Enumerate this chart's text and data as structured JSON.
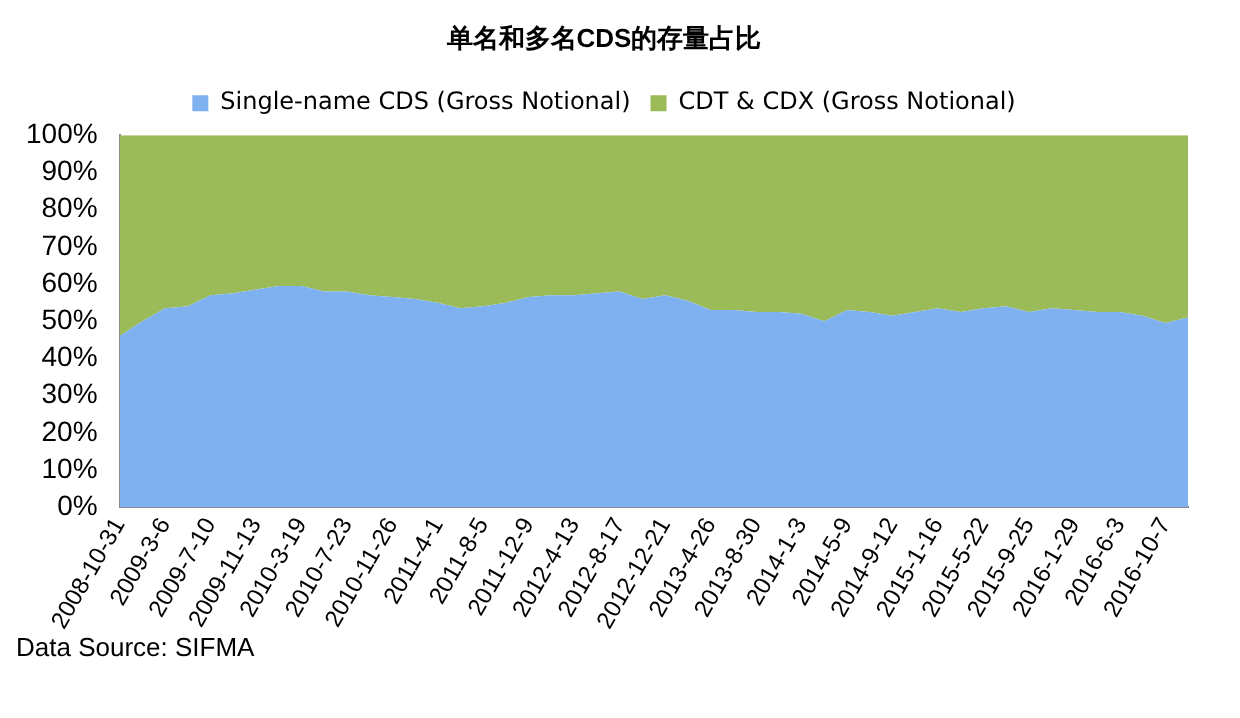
{
  "chart_data": {
    "type": "area",
    "title": "单名和多名CDS的存量占比",
    "stacked": true,
    "legend": "top",
    "grid": false,
    "marker": "none",
    "categories": [
      "2008-10-31",
      null,
      "2009-3-6",
      null,
      "2009-7-10",
      null,
      "2009-11-13",
      null,
      "2010-3-19",
      null,
      "2010-7-23",
      null,
      "2010-11-26",
      null,
      "2011-4-1",
      null,
      "2011-8-5",
      null,
      "2011-12-9",
      null,
      "2012-4-13",
      null,
      "2012-8-17",
      null,
      "2012-12-21",
      null,
      "2013-4-26",
      null,
      "2013-8-30",
      null,
      "2014-1-3",
      null,
      "2014-5-9",
      null,
      "2014-9-12",
      null,
      "2015-1-16",
      null,
      "2015-5-22",
      null,
      "2015-9-25",
      null,
      "2016-1-29",
      null,
      "2016-6-3",
      null,
      "2016-10-7",
      null
    ],
    "series": [
      {
        "name": "Single-name CDS (Gross Notional)",
        "color": "#7fb0f0",
        "values": [
          46,
          50,
          53.5,
          54,
          57,
          57.5,
          58.5,
          59.5,
          59.5,
          58,
          58,
          57,
          56.5,
          56,
          55,
          53.5,
          54,
          55,
          56.5,
          57,
          57,
          57.5,
          58,
          56,
          57,
          55.5,
          53,
          53,
          52.5,
          52.5,
          52,
          50,
          53,
          52.5,
          51.5,
          52.5,
          53.5,
          52.5,
          53.5,
          54,
          52.5,
          53.5,
          53,
          52.5,
          52.5,
          51.5,
          49.5,
          51
        ]
      },
      {
        "name": "CDT & CDX (Gross Notional)",
        "color": "#9bbb59",
        "values": [
          54,
          50,
          46.5,
          46,
          43,
          42.5,
          41.5,
          40.5,
          40.5,
          42,
          42,
          43,
          43.5,
          44,
          45,
          46.5,
          46,
          45,
          43.5,
          43,
          43,
          42.5,
          42,
          44,
          43,
          44.5,
          47,
          47,
          47.5,
          47.5,
          48,
          50,
          47,
          47.5,
          48.5,
          47.5,
          46.5,
          47.5,
          46.5,
          46,
          47.5,
          46.5,
          47,
          47.5,
          47.5,
          48.5,
          50.5,
          49
        ]
      }
    ],
    "ylim": [
      0,
      100
    ],
    "yticks": [
      {
        "value": 0,
        "label": "0%"
      },
      {
        "value": 10,
        "label": "10%"
      },
      {
        "value": 20,
        "label": "20%"
      },
      {
        "value": 30,
        "label": "30%"
      },
      {
        "value": 40,
        "label": "40%"
      },
      {
        "value": 50,
        "label": "50%"
      },
      {
        "value": 60,
        "label": "60%"
      },
      {
        "value": 70,
        "label": "70%"
      },
      {
        "value": 80,
        "label": "80%"
      },
      {
        "value": 90,
        "label": "90%"
      },
      {
        "value": 100,
        "label": "100%"
      }
    ],
    "annotations": [
      "Data Source: SIFMA"
    ]
  }
}
